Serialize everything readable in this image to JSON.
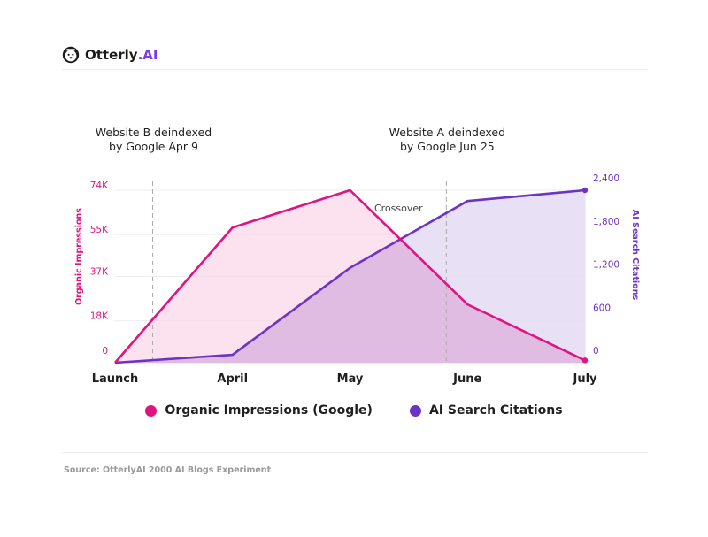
{
  "brand": {
    "name": "Otterly",
    "dot": ".",
    "suffix": "AI",
    "icon": "otter-icon"
  },
  "colors": {
    "impressions": "#e0147f",
    "impressions_fill": "#fbd4e8",
    "citations": "#6d34c4",
    "citations_fill": "#e4dcf5",
    "grid": "#eeeeee",
    "axis_text": "#333333"
  },
  "chart_data": {
    "type": "area",
    "categories": [
      "Launch",
      "April",
      "May",
      "June",
      "July"
    ],
    "series": [
      {
        "name": "Organic Impressions (Google)",
        "axis": "left",
        "values": [
          0,
          58000,
          74000,
          25000,
          1000
        ],
        "ticks": [
          {
            "v": 0,
            "label": "0"
          },
          {
            "v": 18000,
            "label": "18K"
          },
          {
            "v": 37000,
            "label": "37K"
          },
          {
            "v": 55000,
            "label": "55K"
          },
          {
            "v": 74000,
            "label": "74K"
          }
        ],
        "ylim": [
          0,
          74000
        ],
        "ylabel": "Organic Impressions"
      },
      {
        "name": "AI Search Citations",
        "axis": "right",
        "values": [
          0,
          110,
          1320,
          2250,
          2400
        ],
        "ticks": [
          {
            "v": 0,
            "label": "0"
          },
          {
            "v": 600,
            "label": "600"
          },
          {
            "v": 1200,
            "label": "1,200"
          },
          {
            "v": 1800,
            "label": "1,800"
          },
          {
            "v": 2400,
            "label": "2,400"
          }
        ],
        "ylim": [
          0,
          2400
        ],
        "ylabel": "AI Search Citations"
      }
    ],
    "events": [
      {
        "x": 0.32,
        "line1": "Website B deindexed",
        "line2": "by Google Apr 9"
      },
      {
        "x": 2.82,
        "line1": "Website A deindexed",
        "line2": "by Google Jun 25"
      }
    ],
    "annotation": {
      "text": "Crossover",
      "x": 2.3
    },
    "legend_position": "bottom",
    "grid": true
  },
  "source": "Source: OtterlyAI 2000 AI Blogs Experiment"
}
